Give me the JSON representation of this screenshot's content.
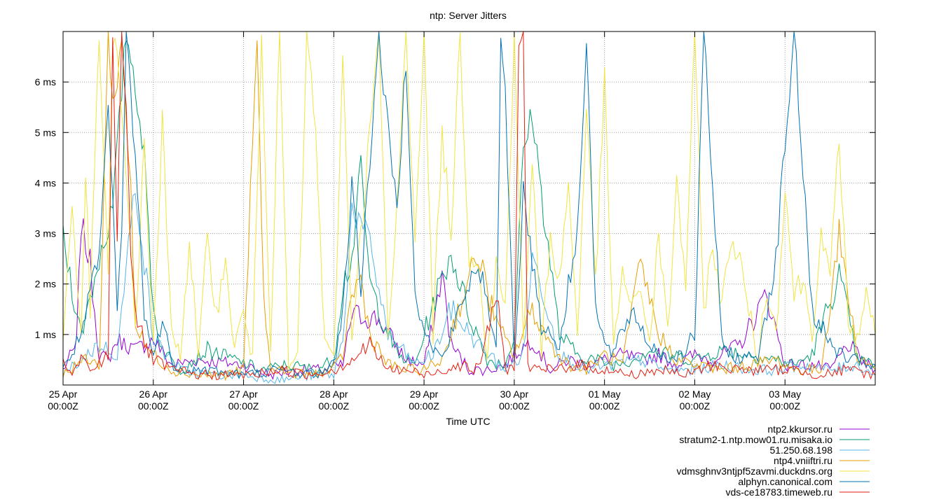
{
  "chart_data": {
    "type": "line",
    "title": "ntp: Server Jitters",
    "xlabel": "Time UTC",
    "ylabel": "",
    "x_range_days": [
      0,
      9.0
    ],
    "ylim": [
      0,
      7.0
    ],
    "y_unit": "ms",
    "y_ticks": [
      {
        "value": 1,
        "label": "1 ms"
      },
      {
        "value": 2,
        "label": "2 ms"
      },
      {
        "value": 3,
        "label": "3 ms"
      },
      {
        "value": 4,
        "label": "4 ms"
      },
      {
        "value": 5,
        "label": "5 ms"
      },
      {
        "value": 6,
        "label": "6 ms"
      }
    ],
    "x_ticks": [
      {
        "day": 0,
        "line1": "25 Apr",
        "line2": "00:00Z"
      },
      {
        "day": 1,
        "line1": "26 Apr",
        "line2": "00:00Z"
      },
      {
        "day": 2,
        "line1": "27 Apr",
        "line2": "00:00Z"
      },
      {
        "day": 3,
        "line1": "28 Apr",
        "line2": "00:00Z"
      },
      {
        "day": 4,
        "line1": "29 Apr",
        "line2": "00:00Z"
      },
      {
        "day": 5,
        "line1": "30 Apr",
        "line2": "00:00Z"
      },
      {
        "day": 6,
        "line1": "01 May",
        "line2": "00:00Z"
      },
      {
        "day": 7,
        "line1": "02 May",
        "line2": "00:00Z"
      },
      {
        "day": 8,
        "line1": "03 May",
        "line2": "00:00Z"
      }
    ],
    "grid": true,
    "legend_position": "bottom-right",
    "series": [
      {
        "name": "ntp2.kkursor.ru",
        "color": "#9400d3",
        "x": [
          0,
          0.15,
          0.2,
          0.3,
          0.4,
          0.5,
          0.6,
          0.8,
          1.0,
          1.2,
          1.5,
          2.0,
          2.3,
          2.6,
          2.9,
          3.1,
          3.2,
          3.5,
          3.8,
          4.0,
          4.1,
          4.2,
          4.3,
          4.5,
          4.7,
          4.9,
          5.0,
          5.2,
          5.4,
          5.6,
          5.8,
          6.0,
          6.2,
          6.4,
          6.6,
          6.8,
          7.0,
          7.2,
          7.5,
          7.8,
          8.0,
          8.3,
          8.5,
          8.7,
          8.9,
          9.0
        ],
        "y": [
          0.3,
          0.8,
          3.2,
          2.4,
          0.6,
          0.5,
          0.9,
          0.7,
          0.9,
          0.4,
          0.5,
          0.4,
          0.2,
          0.3,
          0.3,
          0.4,
          1.4,
          1.3,
          0.5,
          0.4,
          1.2,
          2.2,
          0.8,
          0.3,
          0.3,
          0.4,
          0.6,
          0.9,
          0.3,
          0.5,
          0.4,
          0.5,
          0.6,
          0.5,
          0.6,
          0.4,
          0.6,
          0.5,
          0.8,
          1.8,
          0.4,
          0.4,
          0.3,
          0.8,
          0.4,
          0.3
        ]
      },
      {
        "name": "stratum2-1.ntp.mow01.ru.misaka.io",
        "color": "#009e73",
        "x": [
          0,
          0.2,
          0.4,
          0.55,
          0.7,
          0.8,
          0.9,
          1.0,
          1.1,
          1.3,
          1.6,
          1.9,
          2.2,
          2.5,
          2.8,
          3.0,
          3.1,
          3.2,
          3.3,
          3.4,
          3.5,
          3.7,
          3.9,
          4.1,
          4.3,
          4.5,
          4.7,
          4.9,
          5.0,
          5.1,
          5.2,
          5.3,
          5.5,
          5.7,
          5.9,
          6.1,
          6.3,
          6.5,
          6.7,
          7.0,
          7.3,
          7.6,
          7.9,
          8.1,
          8.3,
          8.6,
          8.8,
          9.0
        ],
        "y": [
          2.9,
          1.0,
          2.5,
          3.5,
          7.0,
          6.0,
          4.5,
          1.5,
          0.7,
          0.3,
          0.7,
          0.5,
          0.3,
          0.4,
          0.3,
          0.5,
          2.0,
          2.5,
          4.3,
          2.0,
          1.5,
          0.6,
          0.4,
          1.6,
          2.6,
          1.4,
          0.5,
          0.4,
          1.0,
          4.6,
          5.4,
          3.8,
          1.0,
          0.6,
          0.5,
          0.4,
          0.5,
          0.7,
          0.6,
          0.5,
          0.7,
          0.6,
          0.5,
          0.4,
          0.6,
          2.2,
          0.5,
          0.4
        ]
      },
      {
        "name": "51.250.68.198",
        "color": "#56b4e9",
        "x": [
          0,
          0.2,
          0.4,
          0.6,
          0.8,
          1.0,
          1.3,
          1.6,
          2.0,
          2.4,
          2.8,
          3.0,
          3.1,
          3.2,
          3.4,
          3.6,
          3.9,
          4.1,
          4.3,
          4.6,
          4.9,
          5.1,
          5.2,
          5.3,
          5.5,
          5.8,
          6.1,
          6.4,
          6.7,
          7.0,
          7.3,
          7.6,
          7.9,
          8.2,
          8.5,
          8.8,
          9.0
        ],
        "y": [
          0.2,
          0.5,
          0.8,
          0.6,
          4.0,
          0.9,
          0.3,
          0.2,
          0.2,
          0.1,
          0.2,
          0.2,
          0.9,
          3.5,
          2.8,
          1.0,
          0.4,
          0.6,
          1.5,
          0.8,
          0.3,
          0.6,
          2.5,
          2.0,
          0.6,
          0.3,
          0.4,
          0.5,
          0.3,
          0.3,
          0.4,
          0.3,
          0.3,
          0.4,
          0.3,
          0.4,
          0.2
        ]
      },
      {
        "name": "ntp4.vniiftri.ru",
        "color": "#e69f00",
        "x": [
          0,
          0.2,
          0.4,
          0.5,
          0.55,
          0.65,
          0.7,
          0.75,
          0.8,
          0.9,
          1.0,
          1.2,
          1.5,
          1.8,
          2.0,
          2.15,
          2.2,
          2.25,
          2.3,
          2.4,
          2.7,
          3.0,
          3.1,
          3.2,
          3.3,
          3.4,
          3.6,
          3.8,
          4.0,
          4.2,
          4.4,
          4.6,
          4.8,
          5.0,
          5.2,
          5.4,
          5.6,
          5.8,
          6.0,
          6.2,
          6.4,
          6.6,
          6.8,
          7.0,
          7.3,
          7.6,
          7.9,
          8.1,
          8.4,
          8.6,
          8.8,
          9.0
        ],
        "y": [
          0.2,
          0.5,
          0.4,
          7.0,
          5.5,
          6.8,
          5.3,
          4.0,
          1.2,
          0.8,
          0.6,
          0.3,
          0.2,
          0.2,
          0.3,
          7.0,
          3.0,
          1.0,
          0.4,
          0.3,
          0.2,
          0.3,
          0.6,
          1.8,
          2.1,
          1.0,
          0.4,
          0.3,
          0.3,
          0.5,
          1.6,
          2.6,
          1.2,
          0.6,
          1.5,
          0.8,
          0.4,
          0.3,
          0.6,
          0.4,
          2.4,
          1.0,
          0.5,
          0.4,
          0.3,
          0.4,
          0.5,
          0.3,
          0.3,
          3.0,
          0.6,
          0.3
        ]
      },
      {
        "name": "vdmsghnv3ntjpf5zavmi.duckdns.org",
        "color": "#f0e442",
        "x": [
          0,
          0.1,
          0.2,
          0.25,
          0.3,
          0.4,
          0.5,
          0.55,
          0.6,
          0.7,
          0.8,
          0.9,
          1.0,
          1.1,
          1.2,
          1.3,
          1.4,
          1.5,
          1.6,
          1.7,
          1.8,
          1.9,
          2.0,
          2.1,
          2.2,
          2.3,
          2.4,
          2.5,
          2.6,
          2.7,
          2.8,
          2.9,
          3.0,
          3.1,
          3.2,
          3.3,
          3.4,
          3.5,
          3.6,
          3.7,
          3.8,
          3.9,
          4.0,
          4.1,
          4.2,
          4.3,
          4.4,
          4.5,
          4.6,
          4.7,
          4.8,
          4.9,
          5.0,
          5.1,
          5.2,
          5.3,
          5.4,
          5.5,
          5.6,
          5.7,
          5.8,
          5.9,
          6.0,
          6.1,
          6.2,
          6.3,
          6.4,
          6.5,
          6.6,
          6.7,
          6.8,
          6.9,
          7.0,
          7.1,
          7.2,
          7.3,
          7.4,
          7.5,
          7.6,
          7.7,
          7.8,
          7.9,
          8.0,
          8.1,
          8.2,
          8.3,
          8.4,
          8.5,
          8.6,
          8.7,
          8.8,
          8.9,
          9.0
        ],
        "y": [
          1.0,
          3.5,
          1.0,
          4.3,
          1.5,
          7.0,
          2.0,
          7.0,
          6.5,
          4.0,
          1.2,
          4.7,
          0.8,
          5.2,
          1.0,
          0.6,
          2.9,
          0.5,
          2.9,
          1.5,
          2.3,
          0.8,
          1.4,
          0.5,
          7.0,
          0.8,
          7.0,
          0.3,
          0.6,
          7.0,
          5.0,
          0.8,
          0.5,
          6.5,
          1.0,
          3.0,
          5.0,
          7.0,
          0.8,
          3.5,
          7.0,
          3.0,
          7.0,
          1.0,
          5.0,
          3.0,
          7.0,
          2.5,
          2.6,
          0.5,
          2.4,
          1.5,
          7.0,
          0.8,
          4.5,
          0.6,
          3.0,
          2.0,
          4.0,
          1.0,
          5.5,
          2.0,
          6.0,
          0.7,
          2.3,
          1.4,
          2.0,
          0.8,
          3.0,
          1.0,
          4.0,
          2.0,
          7.0,
          1.5,
          2.8,
          1.5,
          3.0,
          2.4,
          1.5,
          0.5,
          2.0,
          1.0,
          4.0,
          1.8,
          2.1,
          1.0,
          3.0,
          2.0,
          5.0,
          1.2,
          0.9,
          1.9,
          1.0
        ]
      },
      {
        "name": "alphyn.canonical.com",
        "color": "#0072b2",
        "x": [
          0,
          0.2,
          0.4,
          0.5,
          0.6,
          0.65,
          0.7,
          0.8,
          0.9,
          1.0,
          1.1,
          1.2,
          1.4,
          1.6,
          2.0,
          2.4,
          2.8,
          3.0,
          3.1,
          3.2,
          3.3,
          3.5,
          3.6,
          3.7,
          3.8,
          3.9,
          4.0,
          4.2,
          4.4,
          4.6,
          4.8,
          4.85,
          4.9,
          5.0,
          5.1,
          5.3,
          5.5,
          5.7,
          5.8,
          5.9,
          6.0,
          6.1,
          6.3,
          6.5,
          6.7,
          6.9,
          7.0,
          7.1,
          7.3,
          7.5,
          7.7,
          7.9,
          8.1,
          8.3,
          8.5,
          8.7,
          9.0
        ],
        "y": [
          0.3,
          1.0,
          2.5,
          5.5,
          1.5,
          3.0,
          7.0,
          4.5,
          1.5,
          0.5,
          1.4,
          0.4,
          0.3,
          0.3,
          0.2,
          0.3,
          0.2,
          0.4,
          1.5,
          4.0,
          2.0,
          7.0,
          5.0,
          3.5,
          6.5,
          2.0,
          1.0,
          0.5,
          1.5,
          2.5,
          0.6,
          7.0,
          5.8,
          0.5,
          3.8,
          1.2,
          0.8,
          3.0,
          7.0,
          1.5,
          0.8,
          0.6,
          1.5,
          0.8,
          0.5,
          0.7,
          1.0,
          7.0,
          0.8,
          0.5,
          0.6,
          2.5,
          7.0,
          1.5,
          0.8,
          0.5,
          0.4
        ]
      },
      {
        "name": "vds-ce18783.timeweb.ru",
        "color": "#e51e10",
        "x": [
          0,
          0.1,
          0.2,
          0.3,
          0.4,
          0.5,
          0.55,
          0.6,
          0.65,
          0.7,
          0.75,
          0.8,
          0.9,
          1.0,
          1.2,
          1.5,
          1.8,
          2.1,
          2.4,
          2.7,
          3.0,
          3.2,
          3.4,
          3.6,
          3.8,
          4.0,
          4.2,
          4.4,
          4.6,
          4.8,
          4.9,
          5.0,
          5.05,
          5.1,
          5.15,
          5.2,
          5.4,
          5.7,
          6.0,
          6.3,
          6.6,
          6.9,
          7.2,
          7.5,
          7.8,
          8.1,
          8.4,
          8.7,
          9.0
        ],
        "y": [
          0.4,
          0.2,
          0.5,
          0.3,
          0.4,
          0.6,
          7.0,
          3.0,
          7.0,
          5.6,
          2.8,
          1.5,
          0.8,
          0.5,
          0.3,
          0.2,
          0.2,
          0.2,
          0.3,
          0.2,
          0.3,
          0.5,
          0.8,
          0.3,
          0.3,
          0.2,
          0.3,
          0.4,
          0.3,
          1.8,
          0.3,
          0.4,
          6.5,
          7.0,
          0.4,
          0.3,
          0.3,
          0.4,
          0.3,
          0.2,
          0.3,
          0.2,
          0.4,
          0.3,
          0.3,
          0.3,
          0.2,
          0.3,
          0.2
        ]
      }
    ]
  }
}
